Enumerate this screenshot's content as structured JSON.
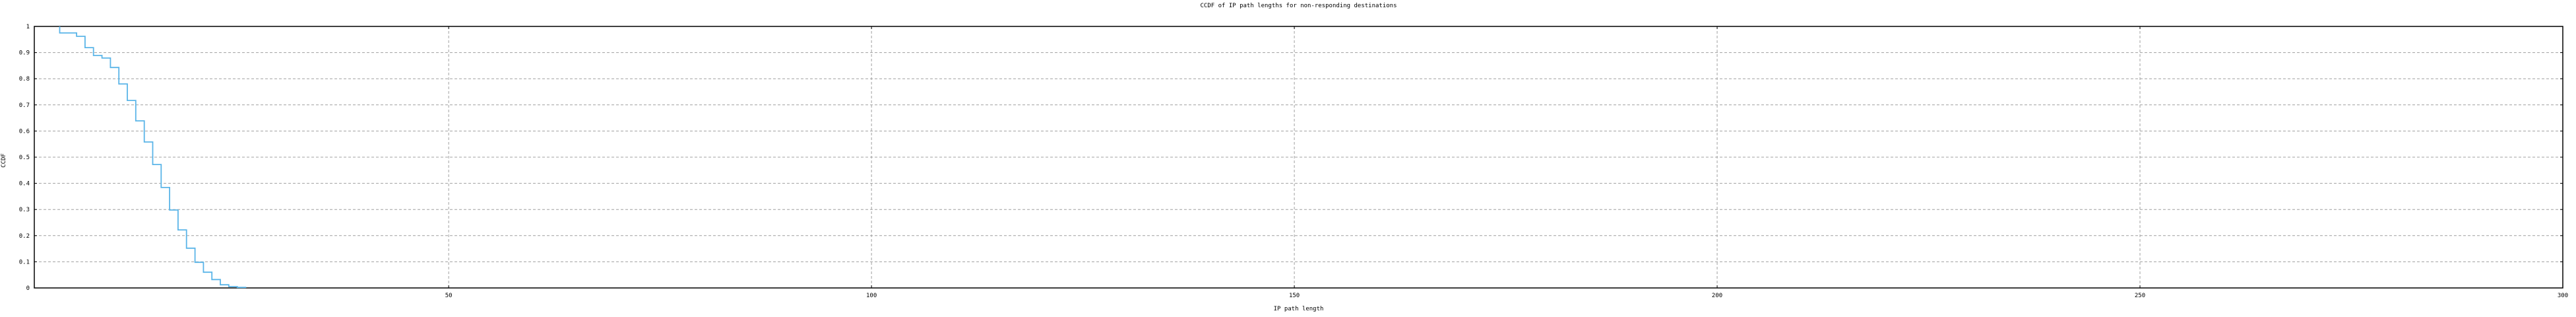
{
  "title": "CCDF of IP path lengths for non-responding destinations",
  "chart_data": {
    "type": "line",
    "subtype": "step-ccdf",
    "title": "CCDF of IP path lengths for non-responding destinations",
    "xlabel": "IP path length",
    "ylabel": "CCDF",
    "xlim": [
      1,
      300
    ],
    "ylim": [
      0,
      1
    ],
    "grid": true,
    "legend": "none",
    "line_color": "#5bb5e8",
    "grid_color": "#a0a0a0",
    "border_color": "#000000",
    "xticks": [
      {
        "v": 50,
        "label": "50"
      },
      {
        "v": 100,
        "label": "100"
      },
      {
        "v": 150,
        "label": "150"
      },
      {
        "v": 200,
        "label": "200"
      },
      {
        "v": 250,
        "label": "250"
      },
      {
        "v": 300,
        "label": "300"
      }
    ],
    "yticks": [
      {
        "v": 0,
        "label": "0"
      },
      {
        "v": 0.1,
        "label": "0.1"
      },
      {
        "v": 0.2,
        "label": "0.2"
      },
      {
        "v": 0.3,
        "label": "0.3"
      },
      {
        "v": 0.4,
        "label": "0.4"
      },
      {
        "v": 0.5,
        "label": "0.5"
      },
      {
        "v": 0.6,
        "label": "0.6"
      },
      {
        "v": 0.7,
        "label": "0.7"
      },
      {
        "v": 0.8,
        "label": "0.8"
      },
      {
        "v": 0.9,
        "label": "0.9"
      },
      {
        "v": 1,
        "label": "1"
      }
    ],
    "series": [
      {
        "name": "CCDF of IP path lengths",
        "steps": [
          [
            4,
            1.0
          ],
          [
            4,
            0.975
          ],
          [
            6,
            0.962
          ],
          [
            7,
            0.919
          ],
          [
            8,
            0.889
          ],
          [
            9,
            0.879
          ],
          [
            10,
            0.843
          ],
          [
            11,
            0.78
          ],
          [
            12,
            0.717
          ],
          [
            13,
            0.639
          ],
          [
            14,
            0.558
          ],
          [
            15,
            0.472
          ],
          [
            16,
            0.384
          ],
          [
            17,
            0.298
          ],
          [
            18,
            0.222
          ],
          [
            19,
            0.152
          ],
          [
            20,
            0.098
          ],
          [
            21,
            0.06
          ],
          [
            22,
            0.032
          ],
          [
            23,
            0.012
          ],
          [
            24,
            0.005
          ],
          [
            25,
            0.002
          ],
          [
            26,
            0
          ]
        ]
      }
    ]
  }
}
